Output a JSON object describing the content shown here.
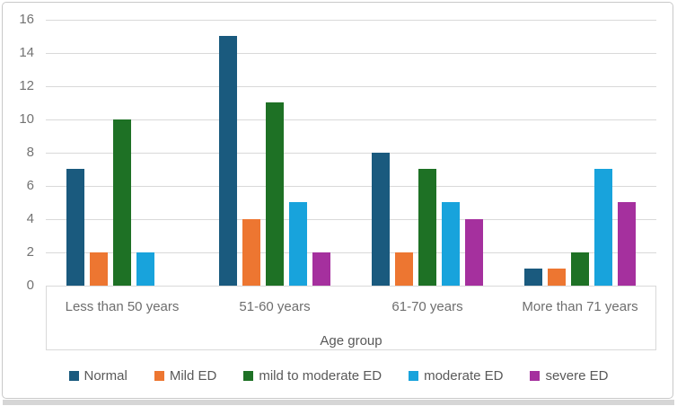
{
  "chart_data": {
    "type": "bar",
    "title": "",
    "xlabel": "Age group",
    "ylabel": "",
    "ylim": [
      0,
      16
    ],
    "ytick_step": 2,
    "grid": true,
    "grid_color": "#d9d9d9",
    "axis_text_color": "#737373",
    "legend_position": "bottom",
    "categories": [
      "Less than 50 years",
      "51-60 years",
      "61-70 years",
      "More than 71 years"
    ],
    "series": [
      {
        "name": "Normal",
        "color": "#1a5a7e",
        "values": [
          7,
          15,
          8,
          1
        ]
      },
      {
        "name": "Mild ED",
        "color": "#ed7631",
        "values": [
          2,
          4,
          2,
          1
        ]
      },
      {
        "name": "mild to moderate ED",
        "color": "#1e7125",
        "values": [
          10,
          11,
          7,
          2
        ]
      },
      {
        "name": "moderate ED",
        "color": "#18a3dc",
        "values": [
          2,
          5,
          5,
          7
        ]
      },
      {
        "name": "severe ED",
        "color": "#a5309e",
        "values": [
          0,
          2,
          4,
          5
        ]
      }
    ]
  }
}
